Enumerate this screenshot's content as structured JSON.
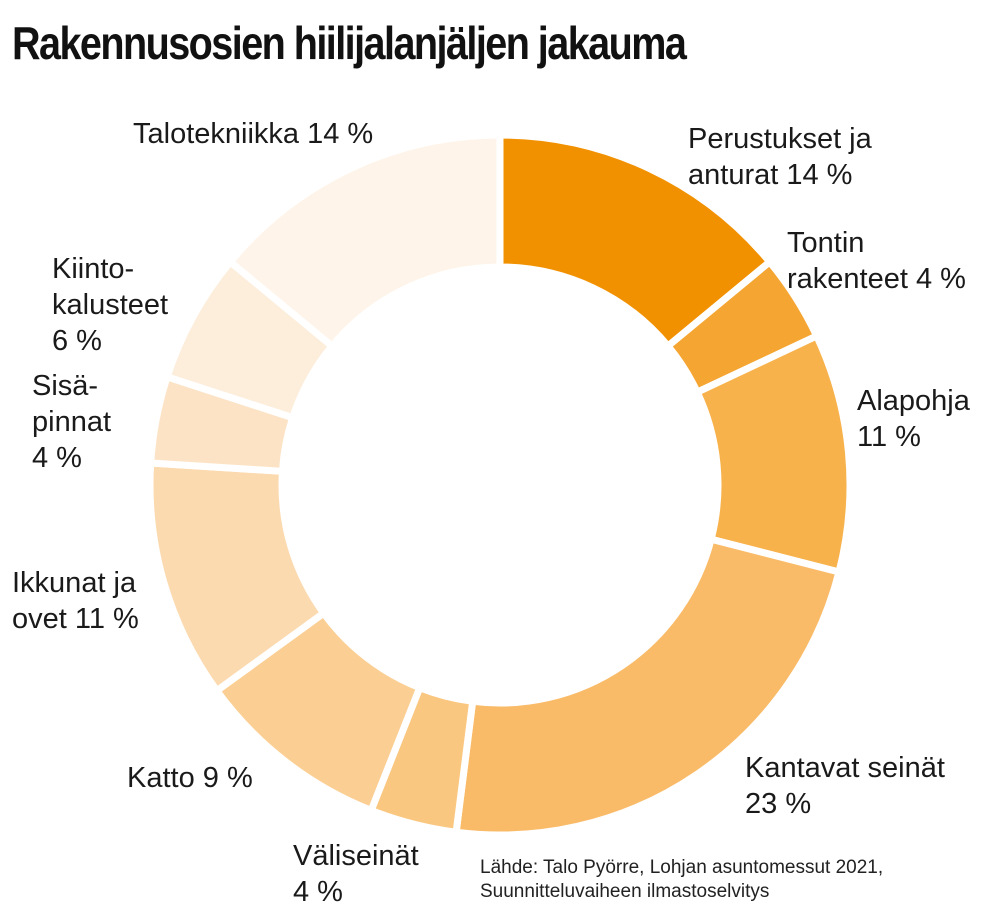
{
  "title": "Rakennusosien hiilijalanjäljen jakauma",
  "source": {
    "line1": "Lähde: Talo Pyörre, Lohjan asuntomessut 2021,",
    "line2": "Suunnitteluvaiheen ilmastoselvitys"
  },
  "chart_data": {
    "type": "pie",
    "style": "donut",
    "unit": "%",
    "slices": [
      {
        "name": "Perustukset ja anturat",
        "value": 14,
        "color": "#f29100",
        "label_lines": [
          "Perustukset ja",
          "anturat 14 %"
        ]
      },
      {
        "name": "Tontin rakenteet",
        "value": 4,
        "color": "#f5a531",
        "label_lines": [
          "Tontin",
          "rakenteet 4 %"
        ]
      },
      {
        "name": "Alapohja",
        "value": 11,
        "color": "#f7b24c",
        "label_lines": [
          "Alapohja",
          "11 %"
        ]
      },
      {
        "name": "Kantavat seinät",
        "value": 23,
        "color": "#f9bb68",
        "label_lines": [
          "Kantavat seinät",
          "23 %"
        ]
      },
      {
        "name": "Väliseinät",
        "value": 4,
        "color": "#fac780",
        "label_lines": [
          "Väliseinät",
          "4 %"
        ]
      },
      {
        "name": "Katto",
        "value": 9,
        "color": "#fbcf93",
        "label_lines": [
          "Katto 9 %"
        ]
      },
      {
        "name": "Ikkunat ja ovet",
        "value": 11,
        "color": "#fcdab0",
        "label_lines": [
          "Ikkunat ja",
          "ovet 11 %"
        ]
      },
      {
        "name": "Sisäpinnat",
        "value": 4,
        "color": "#fde3c6",
        "label_lines": [
          "Sisä-",
          "pinnat",
          "4 %"
        ]
      },
      {
        "name": "Kiintokalusteet",
        "value": 6,
        "color": "#fdeedc",
        "label_lines": [
          "Kiinto-",
          "kalusteet",
          "6 %"
        ]
      },
      {
        "name": "Talotekniikka",
        "value": 14,
        "color": "#fef4e9",
        "label_lines": [
          "Talotekniikka 14 %"
        ]
      }
    ]
  }
}
